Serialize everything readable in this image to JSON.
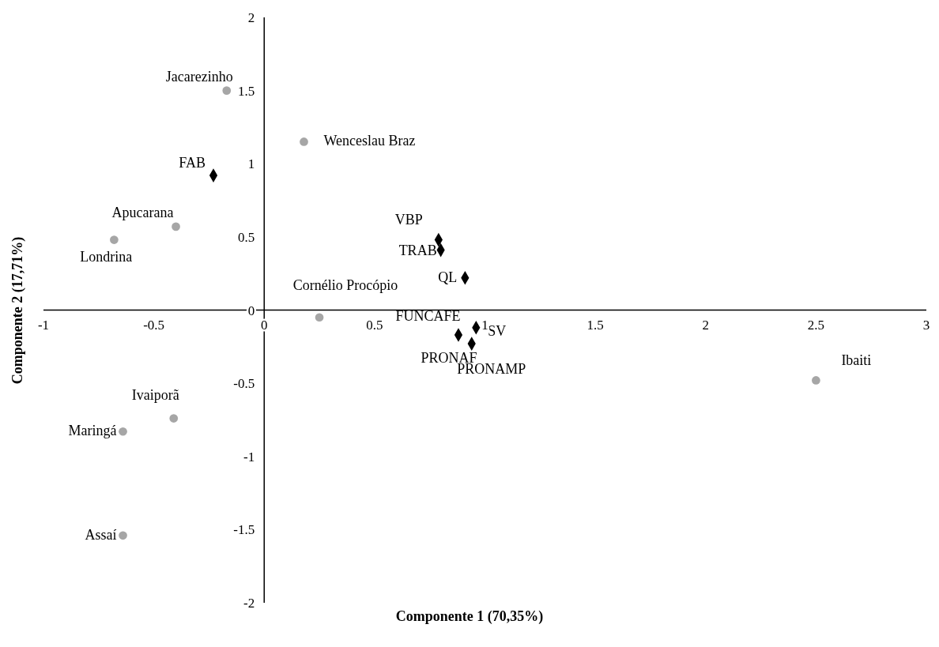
{
  "chart_data": {
    "type": "scatter",
    "xlabel": "Componente 1 (70,35%)",
    "ylabel": "Componente 2 (17,71%)",
    "xlim": [
      -1,
      3
    ],
    "xticks": [
      -1,
      -0.5,
      0,
      0.5,
      1,
      1.5,
      2,
      2.5,
      3
    ],
    "ylim": [
      -2,
      2
    ],
    "yticks": [
      -2,
      -1.5,
      -1,
      -0.5,
      0,
      0.5,
      1,
      1.5,
      2
    ],
    "grid": false,
    "legend": false,
    "series": [
      {
        "color": "#a6a6a6",
        "marker": "circle",
        "x": [
          -0.17,
          0.18,
          -0.4,
          -0.68,
          0.25,
          2.5,
          -0.41,
          -0.64,
          -0.64
        ],
        "values": [
          1.5,
          1.15,
          0.57,
          0.48,
          -0.05,
          -0.48,
          -0.74,
          -0.83,
          -1.54
        ]
      },
      {
        "color": "#000000",
        "marker": "diamond",
        "x": [
          -0.23,
          0.79,
          0.8,
          0.91,
          0.95,
          0.96,
          0.88,
          0.94
        ],
        "values": [
          0.92,
          0.48,
          0.41,
          0.22,
          null,
          -0.12,
          -0.17,
          -0.23
        ]
      }
    ],
    "annotations": [
      {
        "text": "Jacarezinho",
        "x": -0.17,
        "y": 1.5
      },
      {
        "text": "Wenceslau Braz",
        "x": 0.18,
        "y": 1.15
      },
      {
        "text": "Apucarana",
        "x": -0.4,
        "y": 0.57
      },
      {
        "text": "Londrina",
        "x": -0.68,
        "y": 0.48
      },
      {
        "text": "Cornélio Procópio",
        "x": 0.25,
        "y": -0.05
      },
      {
        "text": "Ibaiti",
        "x": 2.5,
        "y": -0.48
      },
      {
        "text": "Ivaiporã",
        "x": -0.41,
        "y": -0.74
      },
      {
        "text": "Maringá",
        "x": -0.64,
        "y": -0.83
      },
      {
        "text": "Assaí",
        "x": -0.64,
        "y": -1.54
      },
      {
        "text": "FAB",
        "x": -0.23,
        "y": 0.92
      },
      {
        "text": "VBP",
        "x": 0.79,
        "y": 0.48
      },
      {
        "text": "TRAB",
        "x": 0.8,
        "y": 0.41
      },
      {
        "text": "QL",
        "x": 0.91,
        "y": 0.22
      },
      {
        "text": "FUNCAFE",
        "x": 0.95,
        "y": -0.12
      },
      {
        "text": "SV",
        "x": 0.96,
        "y": -0.12
      },
      {
        "text": "PRONAF",
        "x": 0.88,
        "y": -0.17
      },
      {
        "text": "PRONAMP",
        "x": 0.94,
        "y": -0.23
      }
    ]
  }
}
